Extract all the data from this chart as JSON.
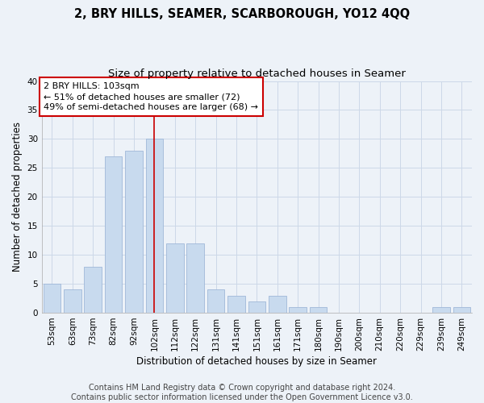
{
  "title1": "2, BRY HILLS, SEAMER, SCARBOROUGH, YO12 4QQ",
  "title2": "Size of property relative to detached houses in Seamer",
  "xlabel": "Distribution of detached houses by size in Seamer",
  "ylabel": "Number of detached properties",
  "categories": [
    "53sqm",
    "63sqm",
    "73sqm",
    "82sqm",
    "92sqm",
    "102sqm",
    "112sqm",
    "122sqm",
    "131sqm",
    "141sqm",
    "151sqm",
    "161sqm",
    "171sqm",
    "180sqm",
    "190sqm",
    "200sqm",
    "210sqm",
    "220sqm",
    "229sqm",
    "239sqm",
    "249sqm"
  ],
  "values": [
    5,
    4,
    8,
    27,
    28,
    30,
    12,
    12,
    4,
    3,
    2,
    3,
    1,
    1,
    0,
    0,
    0,
    0,
    0,
    1,
    1
  ],
  "bar_color": "#c8daee",
  "bar_edge_color": "#a0b8d8",
  "vline_index": 5,
  "annotation_lines": [
    "2 BRY HILLS: 103sqm",
    "← 51% of detached houses are smaller (72)",
    "49% of semi-detached houses are larger (68) →"
  ],
  "annotation_box_color": "#ffffff",
  "annotation_box_edge_color": "#cc0000",
  "annotation_text_color": "#000000",
  "vline_color": "#cc0000",
  "ylim": [
    0,
    40
  ],
  "yticks": [
    0,
    5,
    10,
    15,
    20,
    25,
    30,
    35,
    40
  ],
  "grid_color": "#ccd8e8",
  "background_color": "#edf2f8",
  "footer1": "Contains HM Land Registry data © Crown copyright and database right 2024.",
  "footer2": "Contains public sector information licensed under the Open Government Licence v3.0.",
  "title_fontsize": 10.5,
  "subtitle_fontsize": 9.5,
  "axis_label_fontsize": 8.5,
  "tick_fontsize": 7.5,
  "footer_fontsize": 7,
  "annotation_fontsize": 8
}
